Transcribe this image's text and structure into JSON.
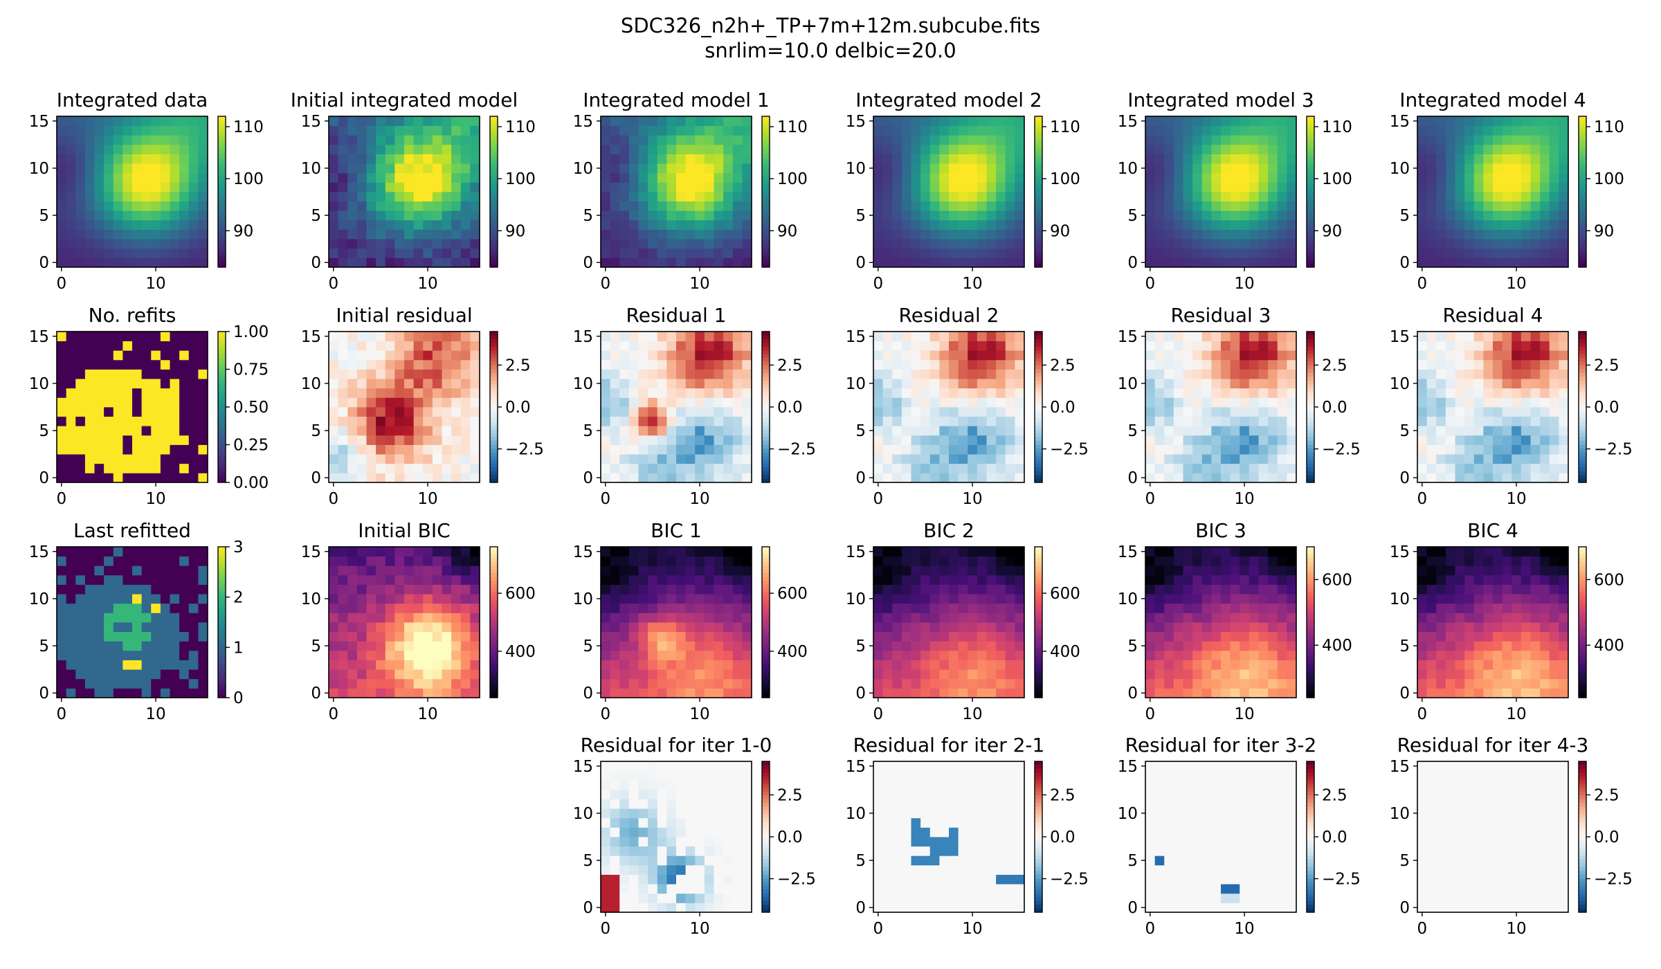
{
  "figure": {
    "title_line1": "SDC326_n2h+_TP+7m+12m.subcube.fits",
    "title_line2": "snrlim=10.0 delbic=20.0"
  },
  "colormaps": {
    "viridis": [
      "#440154",
      "#482878",
      "#3e4989",
      "#31688e",
      "#26828e",
      "#1f9e89",
      "#35b779",
      "#6ece58",
      "#b5de2b",
      "#fde725"
    ],
    "RdBu_r": [
      "#053061",
      "#2166ac",
      "#4393c3",
      "#92c5de",
      "#d1e5f0",
      "#f7f7f7",
      "#fddbc7",
      "#f4a582",
      "#d6604d",
      "#b2182b",
      "#67001f"
    ],
    "magma": [
      "#000004",
      "#180f3d",
      "#440f76",
      "#721f81",
      "#9e2f7f",
      "#cd4071",
      "#f1605d",
      "#fd9668",
      "#feca8d",
      "#fcfdbf"
    ]
  },
  "chart_data": [
    {
      "id": "int_data",
      "type": "heatmap",
      "title": "Integrated data",
      "cmap": "viridis",
      "vmin": 83,
      "vmax": 112,
      "model": "integ",
      "variant": 0,
      "xticks": [
        "0",
        "10"
      ],
      "yticks": [
        "0",
        "5",
        "10",
        "15"
      ],
      "cbar_ticks": [
        {
          "v": 90,
          "label": "90"
        },
        {
          "v": 100,
          "label": "100"
        },
        {
          "v": 110,
          "label": "110"
        }
      ]
    },
    {
      "id": "int_init",
      "type": "heatmap",
      "title": "Initial integrated model",
      "cmap": "viridis",
      "vmin": 83,
      "vmax": 112,
      "model": "integ",
      "variant": 1,
      "xticks": [
        "0",
        "10"
      ],
      "yticks": [
        "0",
        "5",
        "10",
        "15"
      ],
      "cbar_ticks": [
        {
          "v": 90,
          "label": "90"
        },
        {
          "v": 100,
          "label": "100"
        },
        {
          "v": 110,
          "label": "110"
        }
      ]
    },
    {
      "id": "int_1",
      "type": "heatmap",
      "title": "Integrated model 1",
      "cmap": "viridis",
      "vmin": 83,
      "vmax": 112,
      "model": "integ",
      "variant": 2,
      "xticks": [
        "0",
        "10"
      ],
      "yticks": [
        "0",
        "5",
        "10",
        "15"
      ],
      "cbar_ticks": [
        {
          "v": 90,
          "label": "90"
        },
        {
          "v": 100,
          "label": "100"
        },
        {
          "v": 110,
          "label": "110"
        }
      ]
    },
    {
      "id": "int_2",
      "type": "heatmap",
      "title": "Integrated model 2",
      "cmap": "viridis",
      "vmin": 83,
      "vmax": 112,
      "model": "integ",
      "variant": 3,
      "xticks": [
        "0",
        "10"
      ],
      "yticks": [
        "0",
        "5",
        "10",
        "15"
      ],
      "cbar_ticks": [
        {
          "v": 90,
          "label": "90"
        },
        {
          "v": 100,
          "label": "100"
        },
        {
          "v": 110,
          "label": "110"
        }
      ]
    },
    {
      "id": "int_3",
      "type": "heatmap",
      "title": "Integrated model 3",
      "cmap": "viridis",
      "vmin": 83,
      "vmax": 112,
      "model": "integ",
      "variant": 3,
      "xticks": [
        "0",
        "10"
      ],
      "yticks": [
        "0",
        "5",
        "10",
        "15"
      ],
      "cbar_ticks": [
        {
          "v": 90,
          "label": "90"
        },
        {
          "v": 100,
          "label": "100"
        },
        {
          "v": 110,
          "label": "110"
        }
      ]
    },
    {
      "id": "int_4",
      "type": "heatmap",
      "title": "Integrated model 4",
      "cmap": "viridis",
      "vmin": 83,
      "vmax": 112,
      "model": "integ",
      "variant": 3,
      "xticks": [
        "0",
        "10"
      ],
      "yticks": [
        "0",
        "5",
        "10",
        "15"
      ],
      "cbar_ticks": [
        {
          "v": 90,
          "label": "90"
        },
        {
          "v": 100,
          "label": "100"
        },
        {
          "v": 110,
          "label": "110"
        }
      ]
    },
    {
      "id": "refits",
      "type": "heatmap",
      "title": "No. refits",
      "cmap": "viridis",
      "vmin": 0,
      "vmax": 1,
      "model": "refits",
      "variant": 0,
      "xticks": [
        "0",
        "10"
      ],
      "yticks": [
        "0",
        "5",
        "10",
        "15"
      ],
      "cbar_ticks": [
        {
          "v": 0,
          "label": "0.00"
        },
        {
          "v": 0.25,
          "label": "0.25"
        },
        {
          "v": 0.5,
          "label": "0.50"
        },
        {
          "v": 0.75,
          "label": "0.75"
        },
        {
          "v": 1,
          "label": "1.00"
        }
      ]
    },
    {
      "id": "res_init",
      "type": "heatmap",
      "title": "Initial residual",
      "cmap": "RdBu_r",
      "vmin": -4.5,
      "vmax": 4.5,
      "model": "resid",
      "variant": 0,
      "xticks": [
        "0",
        "10"
      ],
      "yticks": [
        "0",
        "5",
        "10",
        "15"
      ],
      "cbar_ticks": [
        {
          "v": -2.5,
          "label": "−2.5"
        },
        {
          "v": 0,
          "label": "0.0"
        },
        {
          "v": 2.5,
          "label": "2.5"
        }
      ]
    },
    {
      "id": "res_1",
      "type": "heatmap",
      "title": "Residual 1",
      "cmap": "RdBu_r",
      "vmin": -4.5,
      "vmax": 4.5,
      "model": "resid",
      "variant": 1,
      "xticks": [
        "0",
        "10"
      ],
      "yticks": [
        "0",
        "5",
        "10",
        "15"
      ],
      "cbar_ticks": [
        {
          "v": -2.5,
          "label": "−2.5"
        },
        {
          "v": 0,
          "label": "0.0"
        },
        {
          "v": 2.5,
          "label": "2.5"
        }
      ]
    },
    {
      "id": "res_2",
      "type": "heatmap",
      "title": "Residual 2",
      "cmap": "RdBu_r",
      "vmin": -4.5,
      "vmax": 4.5,
      "model": "resid",
      "variant": 2,
      "xticks": [
        "0",
        "10"
      ],
      "yticks": [
        "0",
        "5",
        "10",
        "15"
      ],
      "cbar_ticks": [
        {
          "v": -2.5,
          "label": "−2.5"
        },
        {
          "v": 0,
          "label": "0.0"
        },
        {
          "v": 2.5,
          "label": "2.5"
        }
      ]
    },
    {
      "id": "res_3",
      "type": "heatmap",
      "title": "Residual 3",
      "cmap": "RdBu_r",
      "vmin": -4.5,
      "vmax": 4.5,
      "model": "resid",
      "variant": 2,
      "xticks": [
        "0",
        "10"
      ],
      "yticks": [
        "0",
        "5",
        "10",
        "15"
      ],
      "cbar_ticks": [
        {
          "v": -2.5,
          "label": "−2.5"
        },
        {
          "v": 0,
          "label": "0.0"
        },
        {
          "v": 2.5,
          "label": "2.5"
        }
      ]
    },
    {
      "id": "res_4",
      "type": "heatmap",
      "title": "Residual 4",
      "cmap": "RdBu_r",
      "vmin": -4.5,
      "vmax": 4.5,
      "model": "resid",
      "variant": 2,
      "xticks": [
        "0",
        "10"
      ],
      "yticks": [
        "0",
        "5",
        "10",
        "15"
      ],
      "cbar_ticks": [
        {
          "v": -2.5,
          "label": "−2.5"
        },
        {
          "v": 0,
          "label": "0.0"
        },
        {
          "v": 2.5,
          "label": "2.5"
        }
      ]
    },
    {
      "id": "last_refit",
      "type": "heatmap",
      "title": "Last refitted",
      "cmap": "viridis",
      "vmin": 0,
      "vmax": 3,
      "model": "lastrefit",
      "variant": 0,
      "xticks": [
        "0",
        "10"
      ],
      "yticks": [
        "0",
        "5",
        "10",
        "15"
      ],
      "cbar_ticks": [
        {
          "v": 0,
          "label": "0"
        },
        {
          "v": 1,
          "label": "1"
        },
        {
          "v": 2,
          "label": "2"
        },
        {
          "v": 3,
          "label": "3"
        }
      ]
    },
    {
      "id": "bic_init",
      "type": "heatmap",
      "title": "Initial BIC",
      "cmap": "magma",
      "vmin": 240,
      "vmax": 760,
      "model": "bic",
      "variant": 0,
      "xticks": [
        "0",
        "10"
      ],
      "yticks": [
        "0",
        "5",
        "10",
        "15"
      ],
      "cbar_ticks": [
        {
          "v": 400,
          "label": "400"
        },
        {
          "v": 600,
          "label": "600"
        }
      ]
    },
    {
      "id": "bic_1",
      "type": "heatmap",
      "title": "BIC 1",
      "cmap": "magma",
      "vmin": 240,
      "vmax": 760,
      "model": "bic",
      "variant": 1,
      "xticks": [
        "0",
        "10"
      ],
      "yticks": [
        "0",
        "5",
        "10",
        "15"
      ],
      "cbar_ticks": [
        {
          "v": 400,
          "label": "400"
        },
        {
          "v": 600,
          "label": "600"
        }
      ]
    },
    {
      "id": "bic_2",
      "type": "heatmap",
      "title": "BIC 2",
      "cmap": "magma",
      "vmin": 240,
      "vmax": 760,
      "model": "bic",
      "variant": 2,
      "xticks": [
        "0",
        "10"
      ],
      "yticks": [
        "0",
        "5",
        "10",
        "15"
      ],
      "cbar_ticks": [
        {
          "v": 400,
          "label": "400"
        },
        {
          "v": 600,
          "label": "600"
        }
      ]
    },
    {
      "id": "bic_3",
      "type": "heatmap",
      "title": "BIC 3",
      "cmap": "magma",
      "vmin": 240,
      "vmax": 700,
      "model": "bic",
      "variant": 2,
      "xticks": [
        "0",
        "10"
      ],
      "yticks": [
        "0",
        "5",
        "10",
        "15"
      ],
      "cbar_ticks": [
        {
          "v": 400,
          "label": "400"
        },
        {
          "v": 600,
          "label": "600"
        }
      ]
    },
    {
      "id": "bic_4",
      "type": "heatmap",
      "title": "BIC 4",
      "cmap": "magma",
      "vmin": 240,
      "vmax": 700,
      "model": "bic",
      "variant": 2,
      "xticks": [
        "0",
        "10"
      ],
      "yticks": [
        "0",
        "5",
        "10",
        "15"
      ],
      "cbar_ticks": [
        {
          "v": 400,
          "label": "400"
        },
        {
          "v": 600,
          "label": "600"
        }
      ]
    },
    {
      "id": "diff_10",
      "type": "heatmap",
      "title": "Residual for iter 1-0",
      "cmap": "RdBu_r",
      "vmin": -4.5,
      "vmax": 4.5,
      "model": "diff",
      "variant": 1,
      "xticks": [
        "0",
        "10"
      ],
      "yticks": [
        "0",
        "5",
        "10",
        "15"
      ],
      "cbar_ticks": [
        {
          "v": -2.5,
          "label": "−2.5"
        },
        {
          "v": 0,
          "label": "0.0"
        },
        {
          "v": 2.5,
          "label": "2.5"
        }
      ]
    },
    {
      "id": "diff_21",
      "type": "heatmap",
      "title": "Residual for iter 2-1",
      "cmap": "RdBu_r",
      "vmin": -4.5,
      "vmax": 4.5,
      "model": "diff",
      "variant": 2,
      "xticks": [
        "0",
        "10"
      ],
      "yticks": [
        "0",
        "5",
        "10",
        "15"
      ],
      "cbar_ticks": [
        {
          "v": -2.5,
          "label": "−2.5"
        },
        {
          "v": 0,
          "label": "0.0"
        },
        {
          "v": 2.5,
          "label": "2.5"
        }
      ]
    },
    {
      "id": "diff_32",
      "type": "heatmap",
      "title": "Residual for iter 3-2",
      "cmap": "RdBu_r",
      "vmin": -4.5,
      "vmax": 4.5,
      "model": "diff",
      "variant": 3,
      "xticks": [
        "0",
        "10"
      ],
      "yticks": [
        "0",
        "5",
        "10",
        "15"
      ],
      "cbar_ticks": [
        {
          "v": -2.5,
          "label": "−2.5"
        },
        {
          "v": 0,
          "label": "0.0"
        },
        {
          "v": 2.5,
          "label": "2.5"
        }
      ]
    },
    {
      "id": "diff_43",
      "type": "heatmap",
      "title": "Residual for iter 4-3",
      "cmap": "RdBu_r",
      "vmin": -4.5,
      "vmax": 4.5,
      "model": "diff",
      "variant": 4,
      "xticks": [
        "0",
        "10"
      ],
      "yticks": [
        "0",
        "5",
        "10",
        "15"
      ],
      "cbar_ticks": [
        {
          "v": -2.5,
          "label": "−2.5"
        },
        {
          "v": 0,
          "label": "0.0"
        },
        {
          "v": 2.5,
          "label": "2.5"
        }
      ]
    }
  ]
}
